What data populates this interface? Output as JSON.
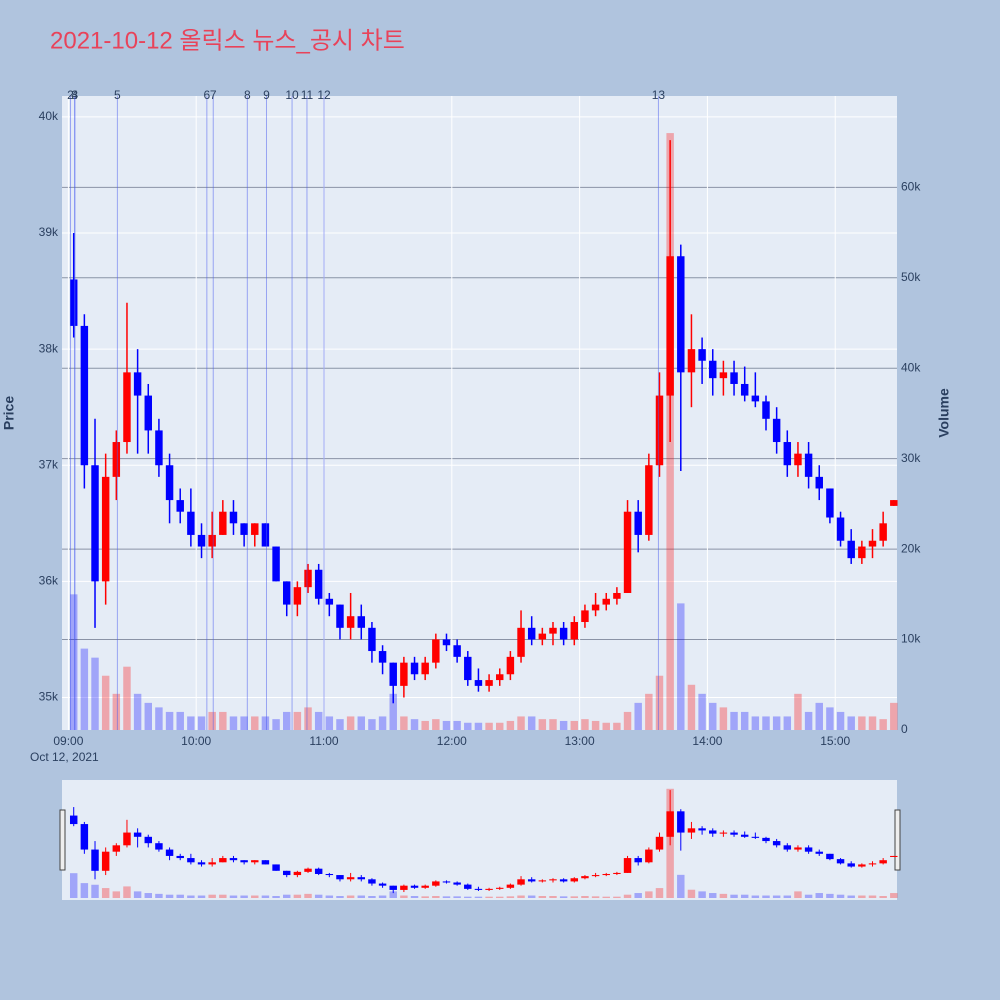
{
  "chart_data": {
    "type": "candlestick",
    "title": "2021-10-12 올릭스 뉴스_공시 차트",
    "y_label": "Price",
    "y2_label": "Volume",
    "x_date_label": "Oct 12, 2021",
    "increasing_color": "#ff0000",
    "decreasing_color": "#0000ff",
    "x": [
      "2021-10-12 09:00",
      "2021-10-12 09:05",
      "2021-10-12 09:10",
      "2021-10-12 09:15",
      "2021-10-12 09:20",
      "2021-10-12 09:25",
      "2021-10-12 09:30",
      "2021-10-12 09:35",
      "2021-10-12 09:40",
      "2021-10-12 09:45",
      "2021-10-12 09:50",
      "2021-10-12 09:55",
      "2021-10-12 10:00",
      "2021-10-12 10:05",
      "2021-10-12 10:10",
      "2021-10-12 10:15",
      "2021-10-12 10:20",
      "2021-10-12 10:25",
      "2021-10-12 10:30",
      "2021-10-12 10:35",
      "2021-10-12 10:40",
      "2021-10-12 10:45",
      "2021-10-12 10:50",
      "2021-10-12 10:55",
      "2021-10-12 11:00",
      "2021-10-12 11:05",
      "2021-10-12 11:10",
      "2021-10-12 11:15",
      "2021-10-12 11:20",
      "2021-10-12 11:25",
      "2021-10-12 11:30",
      "2021-10-12 11:35",
      "2021-10-12 11:40",
      "2021-10-12 11:45",
      "2021-10-12 11:50",
      "2021-10-12 11:55",
      "2021-10-12 12:00",
      "2021-10-12 12:05",
      "2021-10-12 12:10",
      "2021-10-12 12:15",
      "2021-10-12 12:20",
      "2021-10-12 12:25",
      "2021-10-12 12:30",
      "2021-10-12 12:35",
      "2021-10-12 12:40",
      "2021-10-12 12:45",
      "2021-10-12 12:50",
      "2021-10-12 12:55",
      "2021-10-12 13:00",
      "2021-10-12 13:05",
      "2021-10-12 13:10",
      "2021-10-12 13:15",
      "2021-10-12 13:20",
      "2021-10-12 13:25",
      "2021-10-12 13:30",
      "2021-10-12 13:35",
      "2021-10-12 13:40",
      "2021-10-12 13:45",
      "2021-10-12 13:50",
      "2021-10-12 13:55",
      "2021-10-12 14:00",
      "2021-10-12 14:05",
      "2021-10-12 14:10",
      "2021-10-12 14:15",
      "2021-10-12 14:20",
      "2021-10-12 14:25",
      "2021-10-12 14:30",
      "2021-10-12 14:35",
      "2021-10-12 14:40",
      "2021-10-12 14:45",
      "2021-10-12 14:50",
      "2021-10-12 14:55",
      "2021-10-12 15:00",
      "2021-10-12 15:05",
      "2021-10-12 15:10",
      "2021-10-12 15:15",
      "2021-10-12 15:20",
      "2021-10-12 15:25"
    ],
    "open": [
      38600,
      38200,
      37000,
      36000,
      36900,
      37200,
      37800,
      37600,
      37300,
      37000,
      36700,
      36600,
      36400,
      36300,
      36400,
      36600,
      36500,
      36400,
      36500,
      36300,
      36000,
      35800,
      35950,
      36100,
      35850,
      35800,
      35600,
      35700,
      35600,
      35400,
      35300,
      35100,
      35300,
      35200,
      35300,
      35500,
      35450,
      35350,
      35150,
      35100,
      35150,
      35200,
      35350,
      35600,
      35500,
      35550,
      35600,
      35500,
      35650,
      35750,
      35800,
      35850,
      35900,
      36600,
      36400,
      37000,
      37600,
      38800,
      37800,
      38000,
      37900,
      37750,
      37800,
      37700,
      37600,
      37550,
      37400,
      37200,
      37000,
      37100,
      36900,
      36800,
      36550,
      36350,
      36200,
      36300,
      36350,
      36650
    ],
    "high": [
      39000,
      38300,
      37400,
      37100,
      37300,
      38400,
      38000,
      37700,
      37400,
      37100,
      36800,
      36800,
      36500,
      36600,
      36700,
      36700,
      36500,
      36500,
      36500,
      36300,
      36000,
      36000,
      36150,
      36150,
      35900,
      35800,
      35900,
      35800,
      35650,
      35450,
      35300,
      35350,
      35350,
      35350,
      35550,
      35550,
      35500,
      35400,
      35250,
      35200,
      35250,
      35400,
      35750,
      35700,
      35600,
      35650,
      35650,
      35700,
      35800,
      35900,
      35900,
      35950,
      36700,
      36700,
      37100,
      37800,
      39800,
      38900,
      38300,
      38100,
      38000,
      37900,
      37900,
      37850,
      37800,
      37600,
      37500,
      37300,
      37200,
      37200,
      37000,
      36800,
      36600,
      36450,
      36350,
      36450,
      36600,
      36700
    ],
    "low": [
      38100,
      36800,
      35600,
      35800,
      36700,
      37100,
      37100,
      37100,
      36900,
      36500,
      36500,
      36300,
      36200,
      36200,
      36400,
      36400,
      36300,
      36300,
      36300,
      36000,
      35700,
      35700,
      35900,
      35800,
      35700,
      35500,
      35500,
      35500,
      35300,
      35200,
      34950,
      35000,
      35150,
      35150,
      35250,
      35400,
      35300,
      35100,
      35050,
      35050,
      35100,
      35150,
      35300,
      35450,
      35450,
      35450,
      35450,
      35450,
      35600,
      35700,
      35750,
      35800,
      35900,
      36250,
      36350,
      36900,
      37200,
      36950,
      37500,
      37700,
      37600,
      37600,
      37600,
      37550,
      37500,
      37300,
      37100,
      36900,
      36900,
      36800,
      36700,
      36500,
      36300,
      36150,
      36150,
      36200,
      36300,
      36650
    ],
    "close": [
      38200,
      37000,
      36000,
      36900,
      37200,
      37800,
      37600,
      37300,
      37000,
      36700,
      36600,
      36400,
      36300,
      36400,
      36600,
      36500,
      36400,
      36500,
      36300,
      36000,
      35800,
      35950,
      36100,
      35850,
      35800,
      35600,
      35700,
      35600,
      35400,
      35300,
      35100,
      35300,
      35200,
      35300,
      35500,
      35450,
      35350,
      35150,
      35100,
      35150,
      35200,
      35350,
      35600,
      35500,
      35550,
      35600,
      35500,
      35650,
      35750,
      35800,
      35850,
      35900,
      36600,
      36400,
      37000,
      37600,
      38800,
      37800,
      38000,
      37900,
      37750,
      37800,
      37700,
      37600,
      37550,
      37400,
      37200,
      37000,
      37100,
      36900,
      36800,
      36550,
      36350,
      36200,
      36300,
      36350,
      36500,
      36700
    ],
    "volume": [
      15000,
      9000,
      8000,
      6000,
      4000,
      7000,
      4000,
      3000,
      2500,
      2000,
      2000,
      1500,
      1500,
      2000,
      2000,
      1500,
      1500,
      1500,
      1500,
      1200,
      2000,
      2000,
      2500,
      2000,
      1500,
      1200,
      1500,
      1500,
      1200,
      1500,
      4000,
      1500,
      1200,
      1000,
      1200,
      1000,
      1000,
      800,
      800,
      800,
      800,
      1000,
      1500,
      1500,
      1200,
      1200,
      1000,
      1000,
      1200,
      1000,
      800,
      800,
      2000,
      3000,
      4000,
      6000,
      66000,
      14000,
      5000,
      4000,
      3000,
      2500,
      2000,
      2000,
      1500,
      1500,
      1500,
      1500,
      4000,
      2000,
      3000,
      2500,
      2000,
      1500,
      1500,
      1500,
      1200,
      3000
    ],
    "news": [
      {
        "label": "2",
        "x": "2021-10-12 09:01"
      },
      {
        "label": "3",
        "x": "2021-10-12 09:03"
      },
      {
        "label": "4",
        "x": "2021-10-12 09:03"
      },
      {
        "label": "5",
        "x": "2021-10-12 09:23"
      },
      {
        "label": "6",
        "x": "2021-10-12 10:05"
      },
      {
        "label": "7",
        "x": "2021-10-12 10:08"
      },
      {
        "label": "8",
        "x": "2021-10-12 10:24"
      },
      {
        "label": "9",
        "x": "2021-10-12 10:33"
      },
      {
        "label": "10",
        "x": "2021-10-12 10:45"
      },
      {
        "label": "11",
        "x": "2021-10-12 10:52"
      },
      {
        "label": "12",
        "x": "2021-10-12 11:00"
      },
      {
        "label": "13",
        "x": "2021-10-12 13:37"
      }
    ],
    "xlim": [
      "2021-10-12 08:57",
      "2021-10-12 15:29"
    ],
    "xticks": [
      {
        "value": "2021-10-12 09:00",
        "label": "09:00"
      },
      {
        "value": "2021-10-12 10:00",
        "label": "10:00"
      },
      {
        "value": "2021-10-12 11:00",
        "label": "11:00"
      },
      {
        "value": "2021-10-12 12:00",
        "label": "12:00"
      },
      {
        "value": "2021-10-12 13:00",
        "label": "13:00"
      },
      {
        "value": "2021-10-12 14:00",
        "label": "14:00"
      },
      {
        "value": "2021-10-12 15:00",
        "label": "15:00"
      }
    ],
    "ylim": [
      34720,
      40180
    ],
    "yticks": [
      {
        "value": 35000,
        "label": "35k"
      },
      {
        "value": 36000,
        "label": "36k"
      },
      {
        "value": 37000,
        "label": "37k"
      },
      {
        "value": 38000,
        "label": "38k"
      },
      {
        "value": 39000,
        "label": "39k"
      },
      {
        "value": 40000,
        "label": "40k"
      }
    ],
    "y2lim": [
      0,
      70100
    ],
    "y2ticks": [
      0,
      {
        "value": 10000,
        "label": "10k"
      },
      {
        "value": 20000,
        "label": "20k"
      },
      {
        "value": 30000,
        "label": "30k"
      },
      {
        "value": 40000,
        "label": "40k"
      },
      {
        "value": 50000,
        "label": "50k"
      },
      {
        "value": 60000,
        "label": "60k"
      }
    ],
    "grid": true
  }
}
